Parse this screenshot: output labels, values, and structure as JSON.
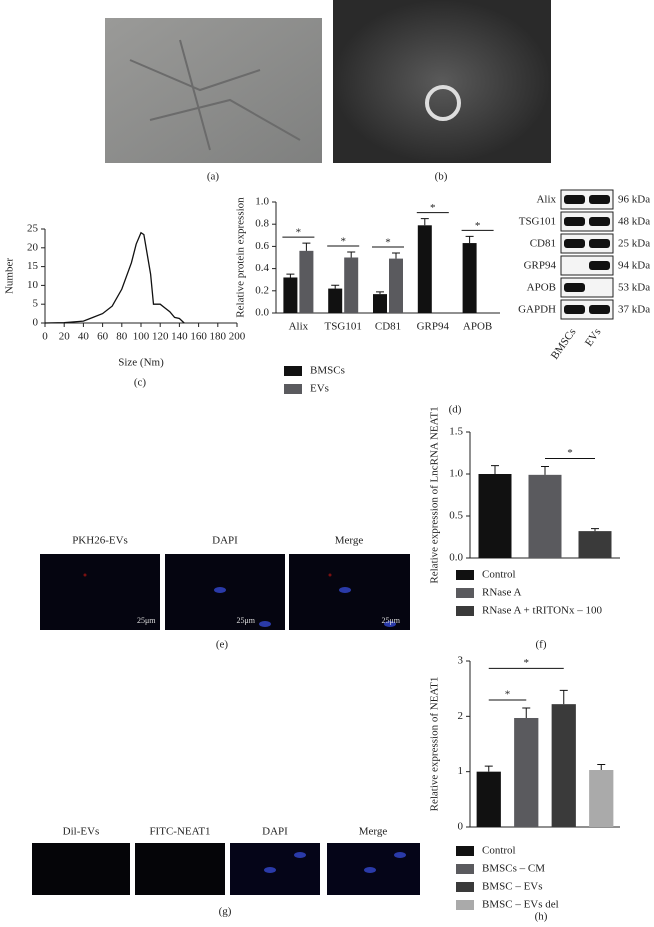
{
  "panel_labels": [
    "(a)",
    "(b)",
    "(c)",
    "(d)",
    "(e)",
    "(f)",
    "(g)",
    "(h)"
  ],
  "blot": {
    "proteins": [
      "Alix",
      "TSG101",
      "CD81",
      "GRP94",
      "APOB",
      "GAPDH"
    ],
    "sizes": [
      "96 kDa",
      "48 kDa",
      "25 kDa",
      "94 kDa",
      "53 kDa",
      "37 kDa"
    ],
    "samples": [
      "BMSCs",
      "EVs"
    ]
  },
  "panel_e": {
    "labels": [
      "PKH26-EVs",
      "DAPI",
      "Merge"
    ],
    "scale_bar": "25μm"
  },
  "panel_g": {
    "labels": [
      "Dil-EVs",
      "FITC-NEAT1",
      "DAPI",
      "Merge"
    ]
  },
  "chart_data": [
    {
      "type": "line",
      "x_label": "Size (Nm)",
      "y_label": "Number",
      "color": "#111",
      "x": [
        0,
        20,
        40,
        50,
        60,
        70,
        80,
        90,
        95,
        100,
        103,
        110,
        113,
        120,
        125,
        130,
        135,
        140,
        145
      ],
      "values": [
        0,
        0.1,
        0.5,
        1.5,
        2.5,
        4.5,
        9,
        16,
        21,
        24,
        23.5,
        13,
        5,
        5,
        4,
        3,
        1.5,
        1.2,
        0
      ],
      "xlim": [
        0,
        200
      ],
      "xticks": [
        0,
        20,
        40,
        60,
        80,
        100,
        120,
        140,
        160,
        180,
        200
      ],
      "ylim": [
        0,
        25
      ],
      "yticks": [
        0,
        5,
        10,
        15,
        20,
        25
      ]
    },
    {
      "type": "bar",
      "y_label": "Relative protein expression",
      "categories": [
        "Alix",
        "TSG101",
        "CD81",
        "GRP94",
        "APOB"
      ],
      "series": [
        {
          "name": "BMSCs",
          "color": "#111",
          "values": [
            0.32,
            0.22,
            0.17,
            0.79,
            0.63
          ],
          "errors": [
            0.03,
            0.03,
            0.02,
            0.06,
            0.06
          ]
        },
        {
          "name": "EVs",
          "color": "#5a5a5e",
          "values": [
            0.56,
            0.5,
            0.49,
            null,
            null
          ],
          "errors": [
            0.07,
            0.05,
            0.05,
            null,
            null
          ]
        }
      ],
      "significance": [
        "*",
        "*",
        "*",
        "*",
        "*"
      ],
      "ylim": [
        0,
        1.0
      ],
      "yticks": [
        {
          "value": 0,
          "label": "0.0"
        },
        0.2,
        0.4,
        0.6,
        0.8,
        {
          "value": 1,
          "label": "1.0"
        }
      ]
    },
    {
      "type": "bar",
      "y_label": "Relative expression of LncRNA NEAT1",
      "categories": [
        "Control",
        "RNase A",
        "RNase A + tRITONx – 100"
      ],
      "colors": [
        "#111",
        "#5a5a5e",
        "#3a3a3a"
      ],
      "values": [
        1.0,
        0.99,
        0.32
      ],
      "errors": [
        0.1,
        0.1,
        0.03
      ],
      "annotations": [
        {
          "text": "*",
          "between": [
            "RNase A",
            "RNase A + tRITONx – 100"
          ]
        }
      ],
      "ylim": [
        0,
        1.5
      ],
      "yticks": [
        {
          "value": 0,
          "label": "0.0"
        },
        0.5,
        {
          "value": 1,
          "label": "1.0"
        },
        1.5
      ]
    },
    {
      "type": "bar",
      "y_label": "Relative expression of NEAT1",
      "categories": [
        "Control",
        "BMSCs – CM",
        "BMSC – EVs",
        "BMSC – EVs del"
      ],
      "colors": [
        "#111",
        "#5a5a5e",
        "#3a3a3a",
        "#aaaaaa"
      ],
      "values": [
        1.0,
        1.97,
        2.22,
        1.03
      ],
      "errors": [
        0.1,
        0.18,
        0.25,
        0.1
      ],
      "annotations": [
        {
          "text": "*",
          "between": [
            "Control",
            "BMSCs – CM"
          ]
        },
        {
          "text": "*",
          "between": [
            "Control",
            "BMSC – EVs"
          ]
        }
      ],
      "ylim": [
        0,
        3
      ],
      "yticks": [
        0,
        1,
        2,
        3
      ]
    }
  ]
}
